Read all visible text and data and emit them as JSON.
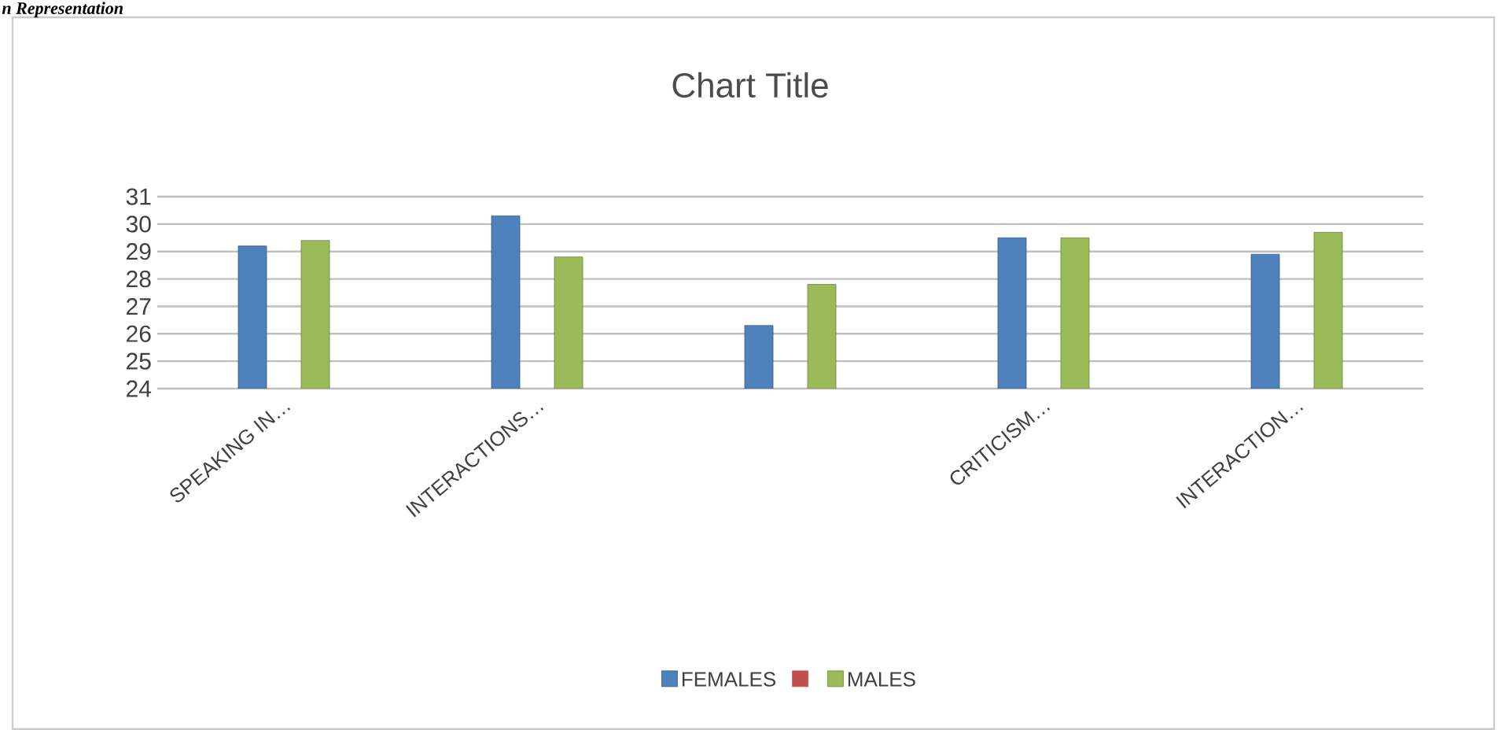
{
  "chart_data": {
    "type": "bar",
    "title": "Chart Title",
    "categories": [
      "SPEAKING IN…",
      "INTERACTIONS…",
      null,
      "CRITICISM…",
      "INTERACTION…"
    ],
    "series": [
      {
        "name": "FEMALES",
        "color": "#4f81bd",
        "values": [
          29.2,
          30.3,
          26.3,
          29.5,
          28.9
        ]
      },
      {
        "color": "#c0504d",
        "values": [
          null,
          null,
          null,
          null,
          null
        ]
      },
      {
        "name": "MALES",
        "color": "#9bbb59",
        "values": [
          29.4,
          28.8,
          27.8,
          29.5,
          29.7
        ]
      }
    ],
    "ylim": [
      24,
      31
    ],
    "yticks": [
      24,
      25,
      26,
      27,
      28,
      29,
      30,
      31
    ],
    "grid": "y",
    "legend": "bottom",
    "annotations": [
      "n Representation"
    ]
  }
}
